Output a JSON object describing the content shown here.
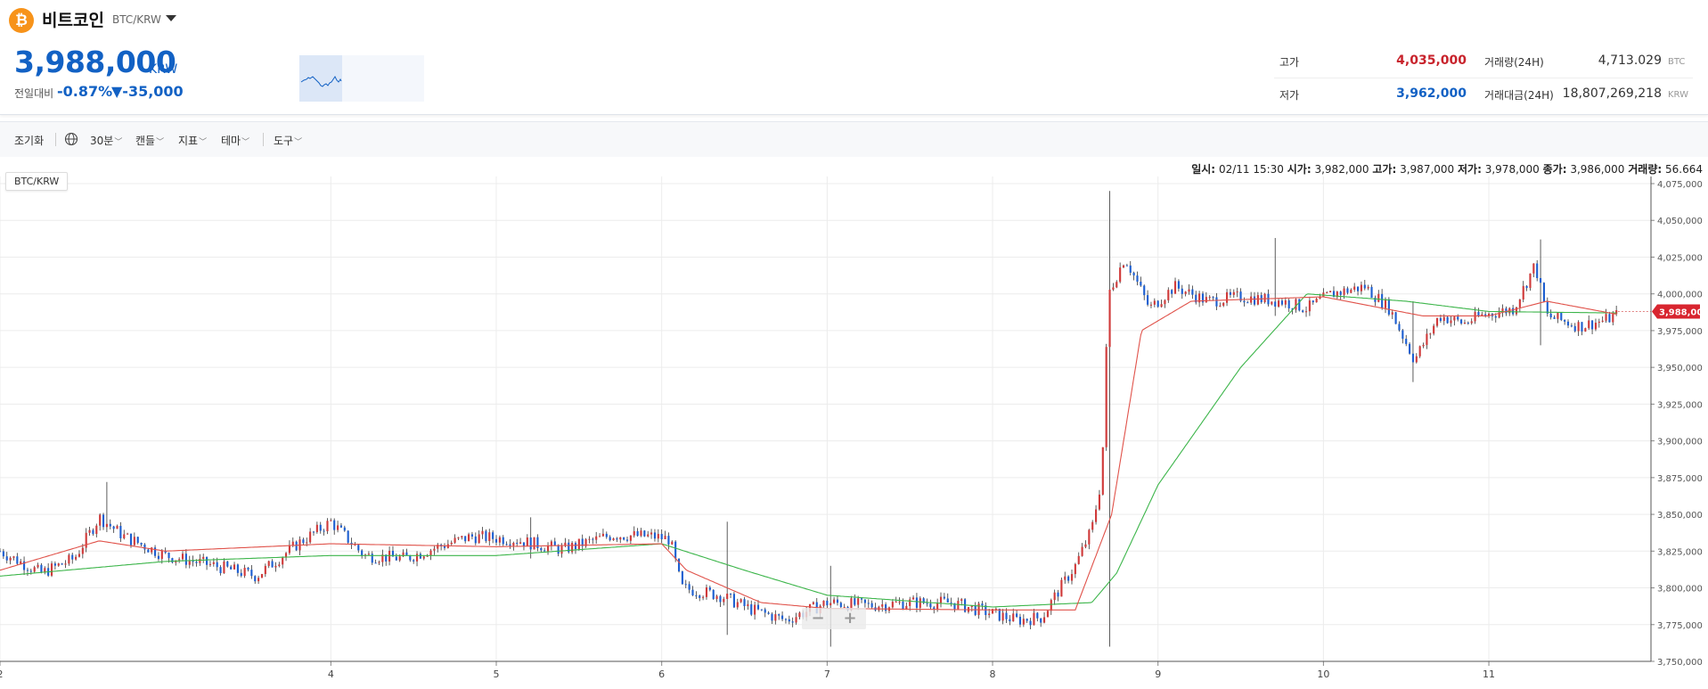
{
  "header": {
    "coin_name": "비트코인",
    "pair": "BTC/KRW",
    "logo_glyph": "₿"
  },
  "price": {
    "current": "3,988,000",
    "unit": "KRW",
    "prev_label": "전일대비",
    "change_rate": "-0.87%",
    "change_price": "▼-35,000"
  },
  "stats": {
    "high_label": "고가",
    "high_value": "4,035,000",
    "low_label": "저가",
    "low_value": "3,962,000",
    "vol_label": "거래량(24H)",
    "vol_value": "4,713.029",
    "vol_unit": "BTC",
    "amount_label": "거래대금(24H)",
    "amount_value": "18,807,269,218",
    "amount_unit": "KRW"
  },
  "toolbar": {
    "reset": "조기화",
    "interval": "30분",
    "candle": "캔들",
    "indicator": "지표",
    "theme": "테마",
    "tools": "도구"
  },
  "info": {
    "date_label": "일시:",
    "date_value": "02/11 15:30",
    "open_label": "시가:",
    "open_value": "3,982,000",
    "high_label": "고가:",
    "high_value": "3,987,000",
    "low_label": "저가:",
    "low_value": "3,978,000",
    "close_label": "종가:",
    "close_value": "3,986,000",
    "volume_label": "거래량:",
    "volume_value": "56.664"
  },
  "series_label": "BTC/KRW",
  "zoom": {
    "minus": "−",
    "plus": "+"
  },
  "colors": {
    "up": "#d03a3a",
    "down": "#1d5fd1",
    "ma_short": "#e0524a",
    "ma_long": "#3cb54a",
    "brand": "#1261c4",
    "accent": "#f7931a"
  },
  "chart_data": {
    "type": "candlestick",
    "interval": "30분",
    "x_ticks": [
      "2",
      "4",
      "5",
      "6",
      "7",
      "8",
      "9",
      "10",
      "11"
    ],
    "x_tick_pos": [
      2,
      4,
      5,
      6,
      7,
      8,
      9,
      10,
      11
    ],
    "x_range": [
      2,
      11.98
    ],
    "y_ticks": [
      "4,075,000",
      "4,050,000",
      "4,025,000",
      "4,000,000",
      "3,975,000",
      "3,950,000",
      "3,925,000",
      "3,900,000",
      "3,875,000",
      "3,850,000",
      "3,825,000",
      "3,800,000",
      "3,775,000",
      "3,750,000"
    ],
    "ylim": [
      3750000,
      4075000
    ],
    "current_price_label": "3,988,000",
    "current_price": 3988000,
    "anchors": [
      [
        2.0,
        3825000
      ],
      [
        2.25,
        3810000
      ],
      [
        2.45,
        3820000
      ],
      [
        2.6,
        3848000
      ],
      [
        2.75,
        3835000
      ],
      [
        3.0,
        3822000
      ],
      [
        3.3,
        3815000
      ],
      [
        3.55,
        3808000
      ],
      [
        3.8,
        3830000
      ],
      [
        4.0,
        3845000
      ],
      [
        4.2,
        3822000
      ],
      [
        4.45,
        3820000
      ],
      [
        4.65,
        3828000
      ],
      [
        4.85,
        3835000
      ],
      [
        5.1,
        3833000
      ],
      [
        5.4,
        3826000
      ],
      [
        5.7,
        3836000
      ],
      [
        5.95,
        3835000
      ],
      [
        6.05,
        3833000
      ],
      [
        6.12,
        3800000
      ],
      [
        6.35,
        3795000
      ],
      [
        6.55,
        3785000
      ],
      [
        6.75,
        3778000
      ],
      [
        7.0,
        3790000
      ],
      [
        7.25,
        3788000
      ],
      [
        7.5,
        3790000
      ],
      [
        7.75,
        3790000
      ],
      [
        7.95,
        3784000
      ],
      [
        8.15,
        3778000
      ],
      [
        8.3,
        3780000
      ],
      [
        8.38,
        3795000
      ],
      [
        8.5,
        3815000
      ],
      [
        8.6,
        3840000
      ],
      [
        8.66,
        3875000
      ],
      [
        8.7,
        4000000
      ],
      [
        8.8,
        4025000
      ],
      [
        8.95,
        3990000
      ],
      [
        9.1,
        4005000
      ],
      [
        9.3,
        3995000
      ],
      [
        9.5,
        3998000
      ],
      [
        9.75,
        3995000
      ],
      [
        9.9,
        3990000
      ],
      [
        10.05,
        4000000
      ],
      [
        10.25,
        4005000
      ],
      [
        10.4,
        3990000
      ],
      [
        10.55,
        3955000
      ],
      [
        10.7,
        3985000
      ],
      [
        10.85,
        3980000
      ],
      [
        10.95,
        3985000
      ],
      [
        11.15,
        3990000
      ],
      [
        11.28,
        4020000
      ],
      [
        11.35,
        3985000
      ],
      [
        11.55,
        3978000
      ],
      [
        11.7,
        3982000
      ],
      [
        11.78,
        3986000
      ]
    ],
    "ma_short_anchors": [
      [
        2.0,
        3812000
      ],
      [
        2.6,
        3832000
      ],
      [
        3.0,
        3825000
      ],
      [
        4.0,
        3830000
      ],
      [
        5.0,
        3828000
      ],
      [
        6.0,
        3830000
      ],
      [
        6.15,
        3812000
      ],
      [
        6.6,
        3790000
      ],
      [
        7.0,
        3786000
      ],
      [
        8.0,
        3785000
      ],
      [
        8.5,
        3785000
      ],
      [
        8.72,
        3850000
      ],
      [
        8.9,
        3975000
      ],
      [
        9.2,
        3995000
      ],
      [
        10.0,
        3998000
      ],
      [
        10.6,
        3985000
      ],
      [
        11.0,
        3985000
      ],
      [
        11.35,
        3995000
      ],
      [
        11.78,
        3986000
      ]
    ],
    "ma_long_anchors": [
      [
        2.0,
        3808000
      ],
      [
        3.0,
        3818000
      ],
      [
        4.0,
        3822000
      ],
      [
        5.0,
        3822000
      ],
      [
        6.0,
        3830000
      ],
      [
        6.5,
        3812000
      ],
      [
        7.0,
        3795000
      ],
      [
        8.0,
        3787000
      ],
      [
        8.6,
        3790000
      ],
      [
        8.75,
        3810000
      ],
      [
        9.0,
        3870000
      ],
      [
        9.5,
        3950000
      ],
      [
        9.9,
        4000000
      ],
      [
        10.5,
        3995000
      ],
      [
        11.0,
        3988000
      ],
      [
        11.78,
        3987000
      ]
    ],
    "spikes": [
      [
        8.71,
        4070000,
        3760000
      ],
      [
        6.4,
        3845000,
        3768000
      ],
      [
        7.03,
        3815000,
        3760000
      ],
      [
        2.65,
        3872000,
        3840000
      ],
      [
        11.32,
        4037000,
        3965000
      ],
      [
        10.55,
        3995000,
        3940000
      ],
      [
        9.7,
        4038000,
        3985000
      ],
      [
        5.2,
        3848000,
        3820000
      ]
    ]
  }
}
